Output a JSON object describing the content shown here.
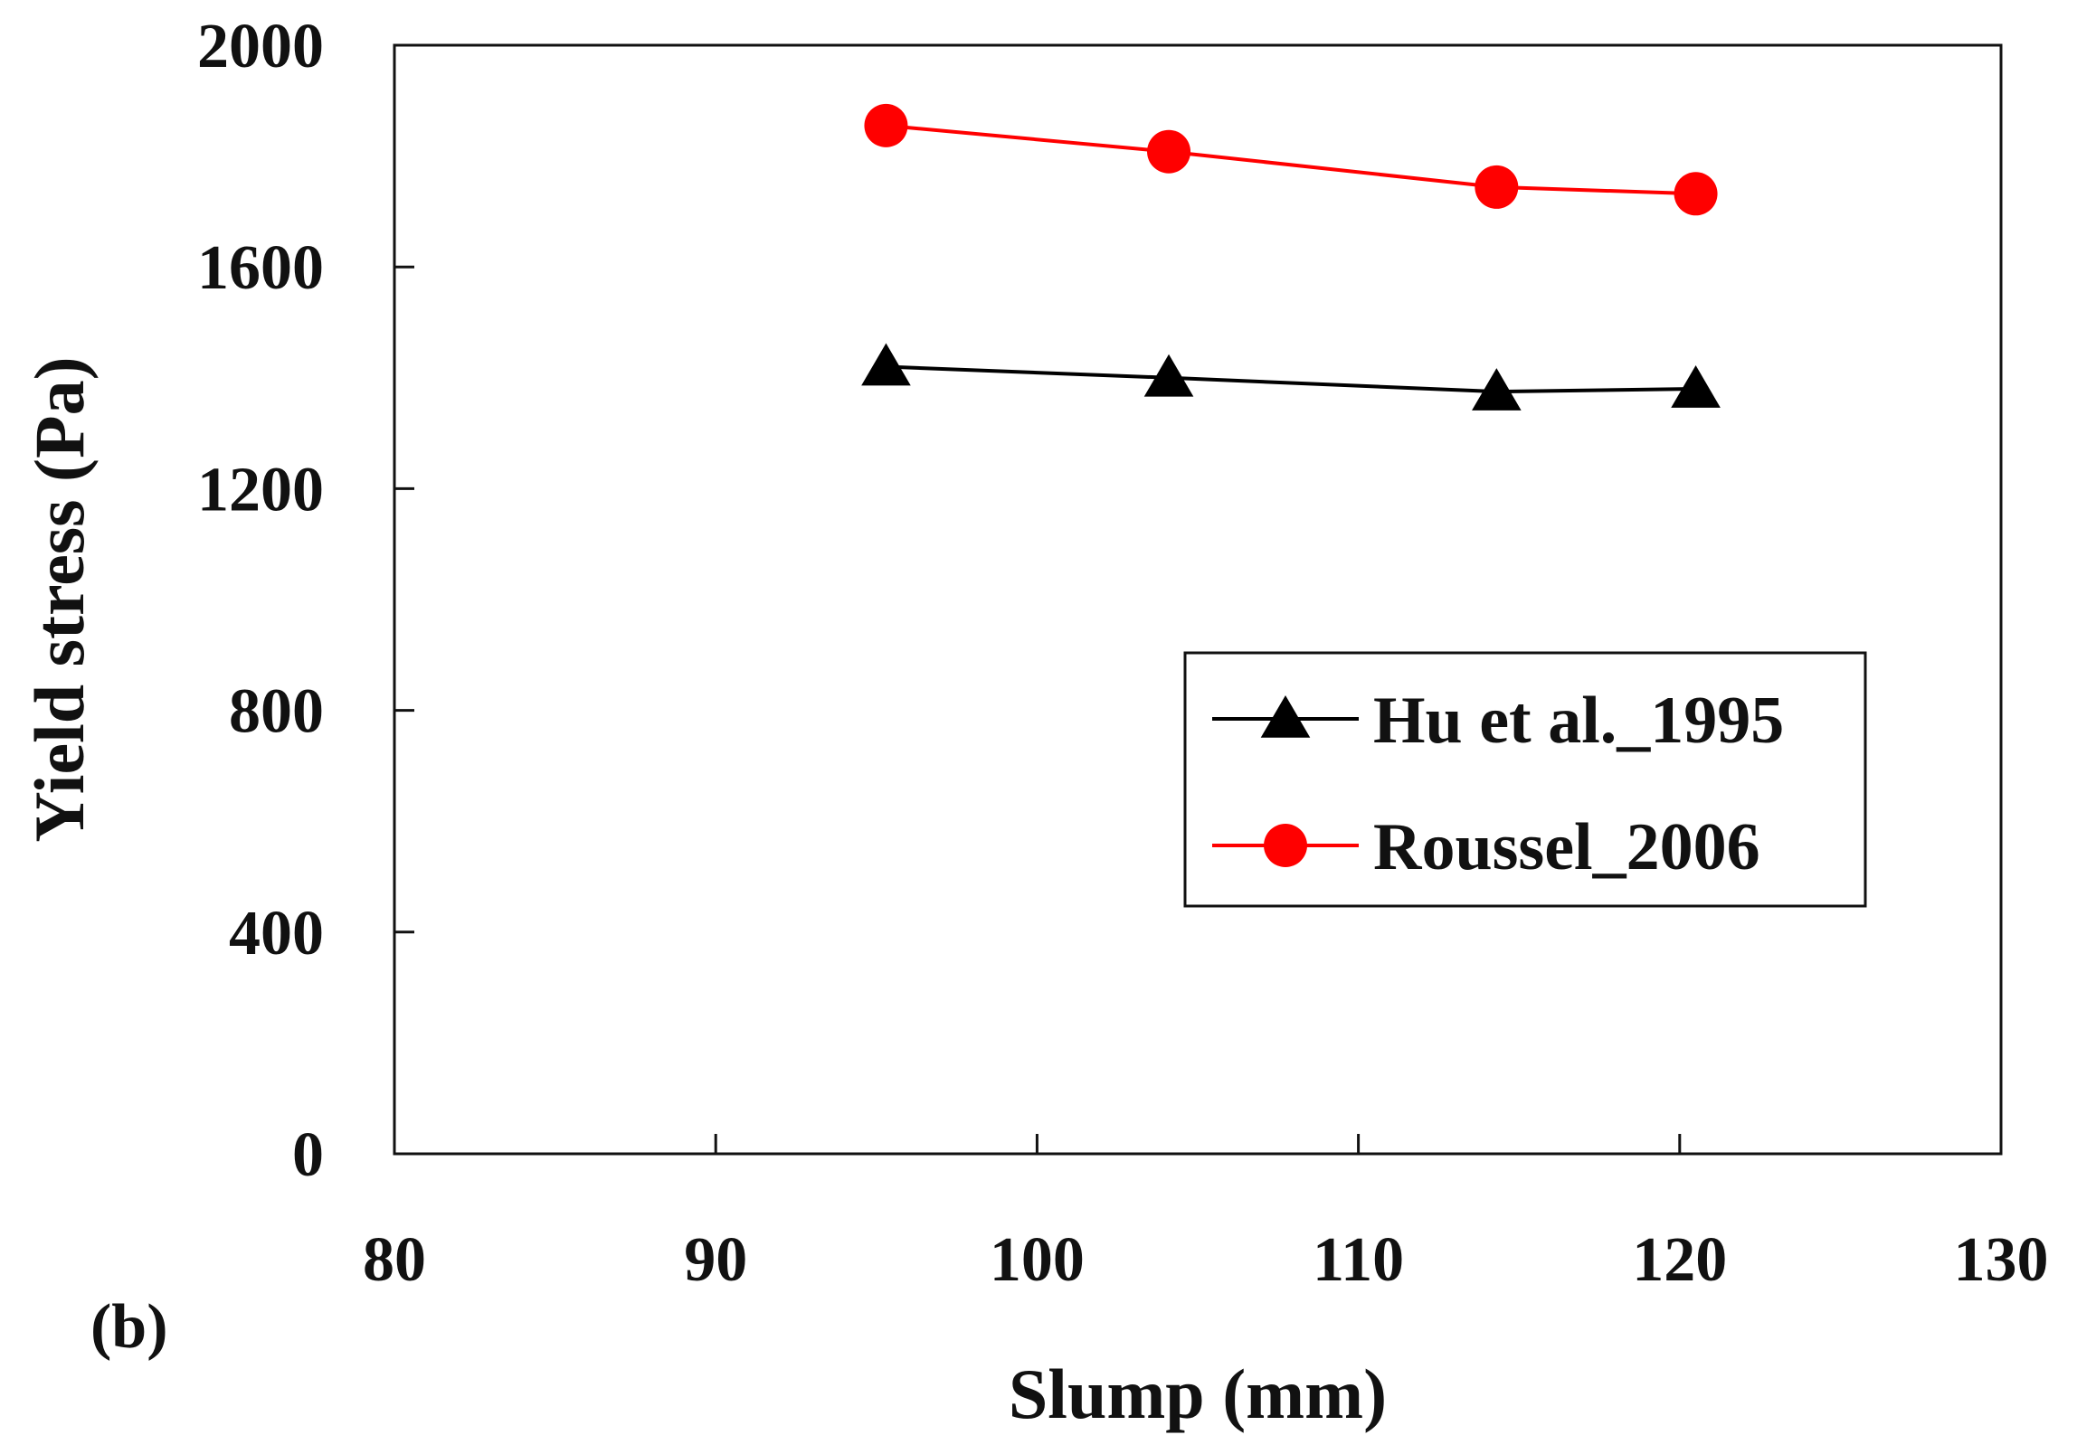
{
  "chart_data": {
    "type": "line",
    "title": "",
    "panel_label": "(b)",
    "xlabel": "Slump (mm)",
    "ylabel": "Yield stress (Pa)",
    "xlim": [
      80,
      130
    ],
    "ylim": [
      0,
      2000
    ],
    "xticks": [
      80,
      90,
      100,
      110,
      120,
      130
    ],
    "yticks": [
      0,
      400,
      800,
      1200,
      1600,
      2000
    ],
    "grid": false,
    "legend_position": "right-middle",
    "series": [
      {
        "name": "Hu et al._1995",
        "color": "#000000",
        "marker": "triangle",
        "x": [
          95.3,
          104.1,
          114.3,
          120.5
        ],
        "y": [
          1420,
          1400,
          1375,
          1380
        ]
      },
      {
        "name": "Roussel_2006",
        "color": "#ff0000",
        "marker": "circle",
        "x": [
          95.3,
          104.1,
          114.3,
          120.5
        ],
        "y": [
          1855,
          1808,
          1744,
          1732
        ]
      }
    ]
  }
}
